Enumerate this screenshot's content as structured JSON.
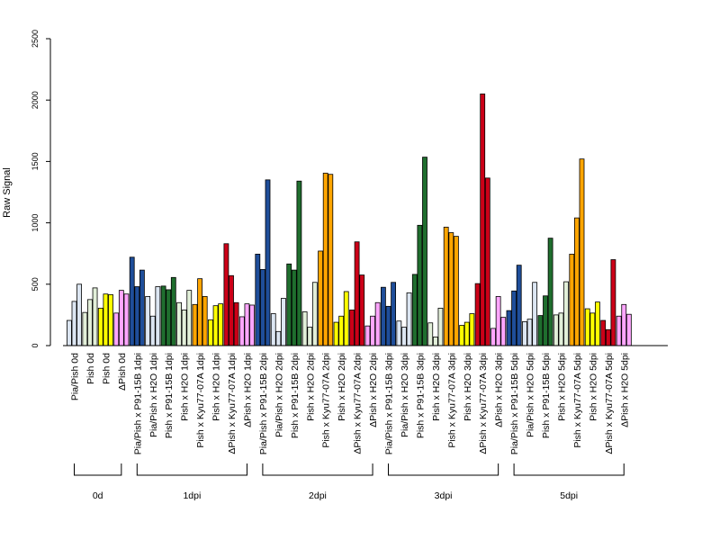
{
  "chart_data": {
    "type": "bar",
    "ylabel": "Raw Signal",
    "xlabel": "",
    "ylim": [
      0,
      2500
    ],
    "yticks": [
      0,
      500,
      1000,
      1500,
      2000,
      2500
    ],
    "grid": false,
    "legend": "none",
    "colors": {
      "Pia/Pish": "#dce6f2",
      "Pish": "#e2efd9",
      "Pish_0d": "#ffff00",
      "ΔPish": "#ffa6ff",
      "Pia/Pish x P91-15B": "#1f4e9a",
      "Pia/Pish x H2O": "#dce6f2",
      "Pish x P91-15B": "#1f6e2e",
      "Pish x H2O": "#e2efd9",
      "Pish x Kyu77-07A": "#ffa500",
      "Pish x H2O yellow": "#ffff00",
      "ΔPish x Kyu77-07A": "#cc0018",
      "ΔPish x H2O": "#ffa6ff"
    },
    "categories": [
      {
        "label": "Pia/Pish 0d",
        "group": "0d",
        "color": "#dce6f2",
        "values": [
          205,
          360,
          500
        ]
      },
      {
        "label": "Pish 0d",
        "group": "0d",
        "color": "#e2efd9",
        "values": [
          270,
          375,
          470
        ]
      },
      {
        "label": "Pish 0d",
        "group": "0d",
        "color": "#ffff00",
        "values": [
          305,
          420,
          415
        ]
      },
      {
        "label": "ΔPish 0d",
        "group": "0d",
        "color": "#ffa6ff",
        "values": [
          265,
          450,
          420
        ]
      },
      {
        "label": "Pia/Pish x P91-15B 1dpi",
        "group": "1dpi",
        "color": "#1f4e9a",
        "values": [
          720,
          480,
          615
        ]
      },
      {
        "label": "Pia/Pish x H2O 1dpi",
        "group": "1dpi",
        "color": "#dce6f2",
        "values": [
          400,
          240,
          480
        ]
      },
      {
        "label": "Pish x P91-15B 1dpi",
        "group": "1dpi",
        "color": "#1f6e2e",
        "values": [
          485,
          455,
          555
        ]
      },
      {
        "label": "Pish x H2O 1dpi",
        "group": "1dpi",
        "color": "#e2efd9",
        "values": [
          350,
          290,
          450
        ]
      },
      {
        "label": "Pish x Kyu77-07A 1dpi",
        "group": "1dpi",
        "color": "#ffa500",
        "values": [
          335,
          545,
          400
        ]
      },
      {
        "label": "Pish x H2O 1dpi",
        "group": "1dpi",
        "color": "#ffff00",
        "values": [
          210,
          325,
          340
        ]
      },
      {
        "label": "ΔPish x Kyu77-07A 1dpi",
        "group": "1dpi",
        "color": "#cc0018",
        "values": [
          830,
          570,
          350
        ]
      },
      {
        "label": "ΔPish x H2O 1dpi",
        "group": "1dpi",
        "color": "#ffa6ff",
        "values": [
          235,
          340,
          330
        ]
      },
      {
        "label": "Pia/Pish x P91-15B 2dpi",
        "group": "2dpi",
        "color": "#1f4e9a",
        "values": [
          745,
          620,
          1350
        ]
      },
      {
        "label": "Pia/Pish x H2O 2dpi",
        "group": "2dpi",
        "color": "#dce6f2",
        "values": [
          260,
          115,
          385
        ]
      },
      {
        "label": "Pish x P91-15B 2dpi",
        "group": "2dpi",
        "color": "#1f6e2e",
        "values": [
          665,
          615,
          1340
        ]
      },
      {
        "label": "Pish x H2O 2dpi",
        "group": "2dpi",
        "color": "#e2efd9",
        "values": [
          275,
          150,
          515
        ]
      },
      {
        "label": "Pish x Kyu77-07A 2dpi",
        "group": "2dpi",
        "color": "#ffa500",
        "values": [
          770,
          1405,
          1395
        ]
      },
      {
        "label": "Pish x H2O 2dpi",
        "group": "2dpi",
        "color": "#ffff00",
        "values": [
          190,
          240,
          440
        ]
      },
      {
        "label": "ΔPish x Kyu77-07A 2dpi",
        "group": "2dpi",
        "color": "#cc0018",
        "values": [
          290,
          845,
          575
        ]
      },
      {
        "label": "ΔPish x H2O 2dpi",
        "group": "2dpi",
        "color": "#ffa6ff",
        "values": [
          160,
          240,
          350
        ]
      },
      {
        "label": "Pia/Pish x P91-15B 3dpi",
        "group": "3dpi",
        "color": "#1f4e9a",
        "values": [
          475,
          320,
          515
        ]
      },
      {
        "label": "Pia/Pish x H2O 3dpi",
        "group": "3dpi",
        "color": "#dce6f2",
        "values": [
          200,
          150,
          430
        ]
      },
      {
        "label": "Pish x P91-15B 3dpi",
        "group": "3dpi",
        "color": "#1f6e2e",
        "values": [
          580,
          980,
          1535
        ]
      },
      {
        "label": "Pish x H2O 3dpi",
        "group": "3dpi",
        "color": "#e2efd9",
        "values": [
          185,
          70,
          305
        ]
      },
      {
        "label": "Pish x Kyu77-07A 3dpi",
        "group": "3dpi",
        "color": "#ffa500",
        "values": [
          965,
          920,
          890
        ]
      },
      {
        "label": "Pish x H2O 3dpi",
        "group": "3dpi",
        "color": "#ffff00",
        "values": [
          165,
          190,
          260
        ]
      },
      {
        "label": "ΔPish x Kyu77-07A 3dpi",
        "group": "3dpi",
        "color": "#cc0018",
        "values": [
          505,
          2050,
          1365
        ]
      },
      {
        "label": "ΔPish x H2O 3dpi",
        "group": "3dpi",
        "color": "#ffa6ff",
        "values": [
          140,
          400,
          230
        ]
      },
      {
        "label": "Pia/Pish x P91-15B 5dpi",
        "group": "5dpi",
        "color": "#1f4e9a",
        "values": [
          285,
          445,
          655
        ]
      },
      {
        "label": "Pia/Pish x H2O 5dpi",
        "group": "5dpi",
        "color": "#dce6f2",
        "values": [
          195,
          215,
          515
        ]
      },
      {
        "label": "Pish x P91-15B 5dpi",
        "group": "5dpi",
        "color": "#1f6e2e",
        "values": [
          245,
          405,
          875
        ]
      },
      {
        "label": "Pish x H2O 5dpi",
        "group": "5dpi",
        "color": "#e2efd9",
        "values": [
          250,
          265,
          520
        ]
      },
      {
        "label": "Pish x Kyu77-07A 5dpi",
        "group": "5dpi",
        "color": "#ffa500",
        "values": [
          745,
          1040,
          1520
        ]
      },
      {
        "label": "Pish x H2O 5dpi",
        "group": "5dpi",
        "color": "#ffff00",
        "values": [
          300,
          265,
          355
        ]
      },
      {
        "label": "ΔPish x Kyu77-07A 5dpi",
        "group": "5dpi",
        "color": "#cc0018",
        "values": [
          205,
          130,
          700
        ]
      },
      {
        "label": "ΔPish x H2O 5dpi",
        "group": "5dpi",
        "color": "#ffa6ff",
        "values": [
          240,
          335,
          255
        ]
      }
    ],
    "groups": [
      "0d",
      "1dpi",
      "2dpi",
      "3dpi",
      "5dpi"
    ]
  }
}
